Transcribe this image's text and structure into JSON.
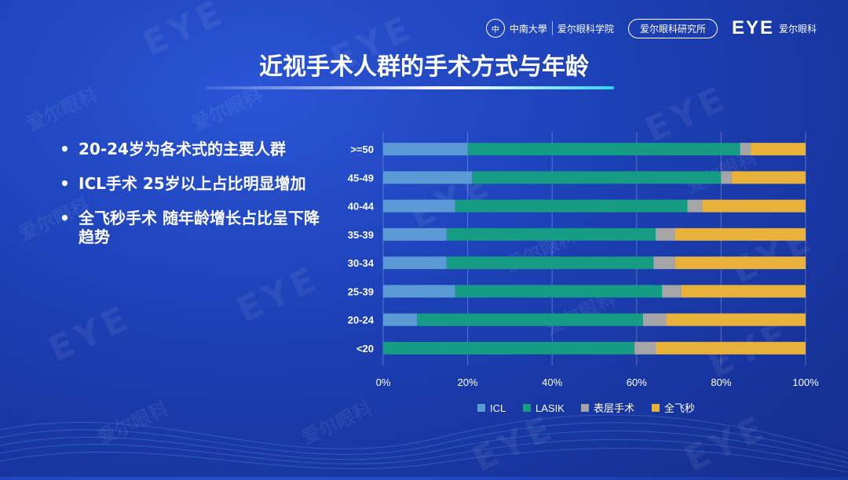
{
  "header": {
    "csu_logo_text": "中南大學",
    "csu_badge": "中",
    "aier_school_text": "爱尔眼科学院",
    "institute_label": "爱尔眼科研究所",
    "eye_logo_text": "EYE",
    "eye_logo_name": "爱尔眼科"
  },
  "title": "近视手术人群的手术方式与年龄",
  "bullets": [
    "20-24岁为各术式的主要人群",
    "ICL手术 25岁以上占比明显增加",
    "全飞秒手术 随年龄增长占比呈下降趋势"
  ],
  "watermarks": {
    "eye": "EYE",
    "cn": "爱尔眼科"
  },
  "chart_data": {
    "type": "bar",
    "orientation": "horizontal",
    "stacked": "percent",
    "categories": [
      ">=50",
      "45-49",
      "40-44",
      "35-39",
      "30-34",
      "25-39",
      "20-24",
      "<20"
    ],
    "series": [
      {
        "name": "ICL",
        "color": "#5b9bd5",
        "values": [
          20,
          21,
          17,
          15,
          15,
          17,
          8,
          0
        ]
      },
      {
        "name": "LASIK",
        "color": "#169b84",
        "values": [
          64.5,
          59,
          55,
          49.5,
          49,
          49,
          53.5,
          59.5
        ]
      },
      {
        "name": "表层手术",
        "color": "#a5a5a5",
        "values": [
          2.5,
          2.5,
          3.5,
          4.5,
          5,
          4.5,
          5.5,
          5
        ]
      },
      {
        "name": "全飞秒",
        "color": "#e8b23a",
        "values": [
          13,
          17.5,
          24.5,
          31,
          31,
          29.5,
          33,
          35.5
        ]
      }
    ],
    "xlim": [
      0,
      100
    ],
    "xticks": [
      "0%",
      "20%",
      "40%",
      "60%",
      "80%",
      "100%"
    ],
    "grid": true,
    "legend": "bottom"
  }
}
